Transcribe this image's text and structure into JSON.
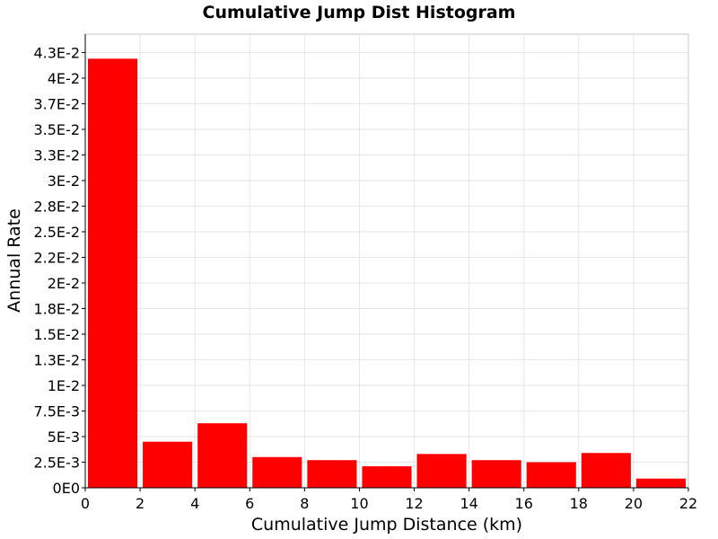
{
  "chart_data": {
    "type": "bar",
    "title": "Cumulative Jump Dist Histogram",
    "xlabel": "Cumulative Jump Distance (km)",
    "ylabel": "Annual Rate",
    "xlim": [
      0,
      22
    ],
    "ylim": [
      0,
      0.0443
    ],
    "bin_width": 2,
    "bar_color": "#ff0000",
    "grid": true,
    "x_ticks": [
      0,
      2,
      4,
      6,
      8,
      10,
      12,
      14,
      16,
      18,
      20,
      22
    ],
    "x_tick_labels": [
      "0",
      "2",
      "4",
      "6",
      "8",
      "10",
      "12",
      "14",
      "16",
      "18",
      "20",
      "22"
    ],
    "y_ticks": [
      0,
      0.0025,
      0.005,
      0.0075,
      0.01,
      0.0125,
      0.015,
      0.0175,
      0.02,
      0.0225,
      0.025,
      0.0275,
      0.03,
      0.0325,
      0.035,
      0.0375,
      0.04,
      0.0425
    ],
    "y_tick_labels": [
      "0E0",
      "2.5E-3",
      "5E-3",
      "7.5E-3",
      "1E-2",
      "1.3E-2",
      "1.5E-2",
      "1.8E-2",
      "2E-2",
      "2.2E-2",
      "2.5E-2",
      "2.8E-2",
      "3E-2",
      "3.3E-2",
      "3.5E-2",
      "3.7E-2",
      "4E-2",
      "4.3E-2"
    ],
    "bins": [
      {
        "x_start": 0,
        "x_end": 2,
        "value": 0.0419
      },
      {
        "x_start": 2,
        "x_end": 4,
        "value": 0.0045
      },
      {
        "x_start": 4,
        "x_end": 6,
        "value": 0.0063
      },
      {
        "x_start": 6,
        "x_end": 8,
        "value": 0.003
      },
      {
        "x_start": 8,
        "x_end": 10,
        "value": 0.0027
      },
      {
        "x_start": 10,
        "x_end": 12,
        "value": 0.0021
      },
      {
        "x_start": 12,
        "x_end": 14,
        "value": 0.0033
      },
      {
        "x_start": 14,
        "x_end": 16,
        "value": 0.0027
      },
      {
        "x_start": 16,
        "x_end": 18,
        "value": 0.0025
      },
      {
        "x_start": 18,
        "x_end": 20,
        "value": 0.0034
      },
      {
        "x_start": 20,
        "x_end": 22,
        "value": 0.0009
      }
    ]
  }
}
